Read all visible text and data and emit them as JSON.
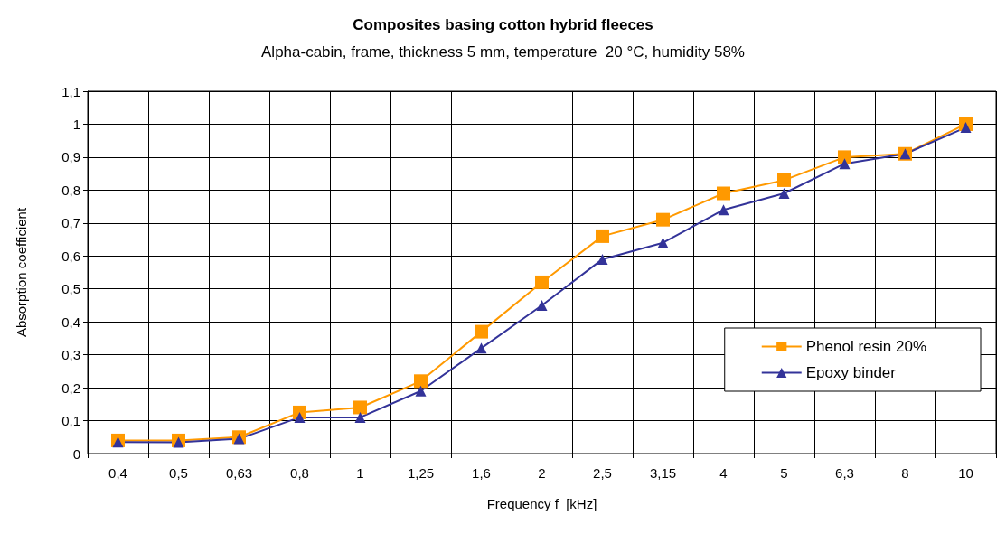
{
  "chart_data": {
    "type": "line",
    "title": "Composites basing cotton hybrid fleeces",
    "subtitle": "Alpha-cabin, frame, thickness 5 mm, temperature  20 °C, humidity 58%",
    "xlabel": "Frequency f  [kHz]",
    "ylabel": "Absorption coefficient",
    "categories": [
      "0,4",
      "0,5",
      "0,63",
      "0,8",
      "1",
      "1,25",
      "1,6",
      "2",
      "2,5",
      "3,15",
      "4",
      "5",
      "6,3",
      "8",
      "10"
    ],
    "series": [
      {
        "name": "Phenol resin 20%",
        "color": "#ff9900",
        "marker": "square",
        "values": [
          0.04,
          0.04,
          0.05,
          0.125,
          0.14,
          0.22,
          0.37,
          0.52,
          0.66,
          0.71,
          0.79,
          0.83,
          0.9,
          0.91,
          1.0
        ]
      },
      {
        "name": "Epoxy binder",
        "color": "#333399",
        "marker": "triangle",
        "values": [
          0.035,
          0.034,
          0.045,
          0.11,
          0.11,
          0.19,
          0.32,
          0.45,
          0.59,
          0.64,
          0.74,
          0.79,
          0.88,
          0.91,
          0.99
        ]
      }
    ],
    "ylim": [
      0,
      1.1
    ],
    "yticks": [
      0,
      {
        "value": 0.1,
        "label": "0,1"
      },
      {
        "value": 0.2,
        "label": "0,2"
      },
      {
        "value": 0.3,
        "label": "0,3"
      },
      {
        "value": 0.4,
        "label": "0,4"
      },
      {
        "value": 0.5,
        "label": "0,5"
      },
      {
        "value": 0.6,
        "label": "0,6"
      },
      {
        "value": 0.7,
        "label": "0,7"
      },
      {
        "value": 0.8,
        "label": "0,8"
      },
      {
        "value": 0.9,
        "label": "0,9"
      },
      1,
      {
        "value": 1.1,
        "label": "1,1"
      }
    ],
    "grid": true,
    "legend": "right",
    "line_style": "solid"
  }
}
